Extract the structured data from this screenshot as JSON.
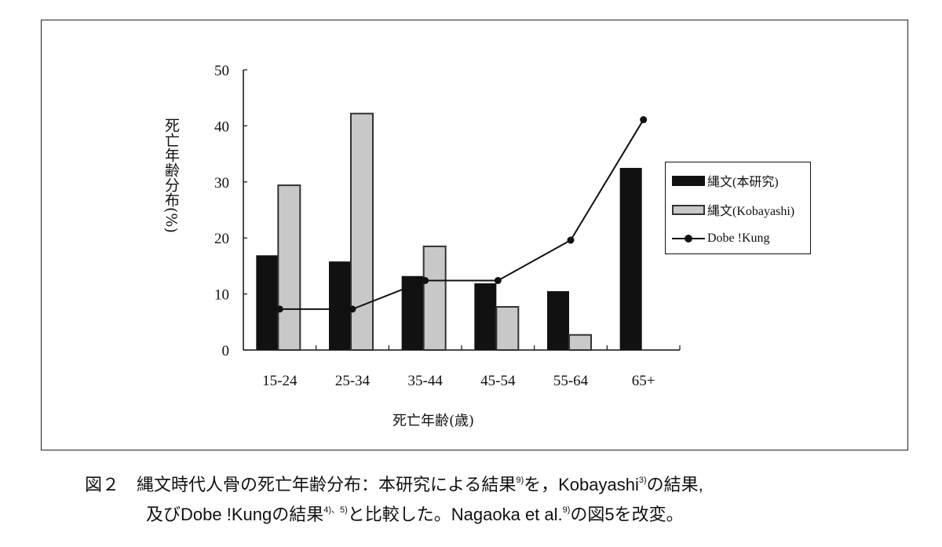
{
  "chart_data": {
    "type": "bar",
    "categories": [
      "15-24",
      "25-34",
      "35-44",
      "45-54",
      "55-64",
      "65+"
    ],
    "series": [
      {
        "name": "縄文(本研究)",
        "kind": "bar",
        "color": "#111111",
        "values": [
          16.9,
          15.8,
          13.2,
          11.9,
          10.5,
          32.5
        ]
      },
      {
        "name": "縄文(Kobayashi)",
        "kind": "bar",
        "color": "#c8c8c8",
        "values": [
          29.4,
          42.2,
          18.5,
          7.7,
          2.7,
          0
        ]
      },
      {
        "name": "Dobe !Kung",
        "kind": "line",
        "color": "#111111",
        "values": [
          7.3,
          7.3,
          12.4,
          12.4,
          19.6,
          41.1
        ]
      }
    ],
    "xlabel": "死亡年齢(歳)",
    "ylabel": "死亡年齢分布(%)",
    "ylim": [
      0,
      50
    ],
    "yticks": [
      0,
      10,
      20,
      30,
      40,
      50
    ],
    "grid": false,
    "legend": "right"
  },
  "caption": {
    "line1_a": "図２　縄文時代人骨の死亡年齢分布：本研究による結果",
    "sup1": "9)",
    "line1_b": "を，Kobayashi",
    "sup2": "3)",
    "line1_c": "の結果,",
    "line2_a": "及びDobe !Kungの結果",
    "sup3": "4)、5)",
    "line2_b": "と比較した。Nagaoka et al.",
    "sup4": "9)",
    "line2_c": "の図5を改変。"
  }
}
